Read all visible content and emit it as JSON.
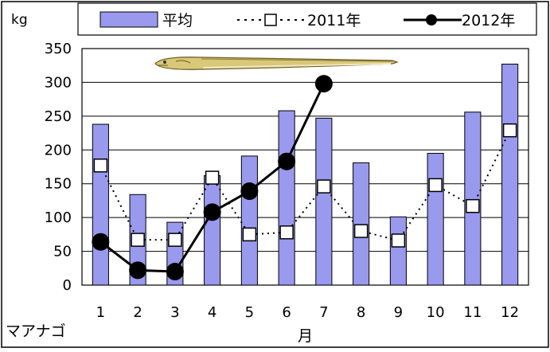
{
  "chart_data": {
    "type": "bar",
    "unit_label": "kg",
    "xlabel": "月",
    "species_label": "マアナゴ",
    "categories": [
      "1",
      "2",
      "3",
      "4",
      "5",
      "6",
      "7",
      "8",
      "9",
      "10",
      "11",
      "12"
    ],
    "ylim": [
      0,
      350
    ],
    "yticks": [
      "0",
      "50",
      "100",
      "150",
      "200",
      "250",
      "300",
      "350"
    ],
    "grid": true,
    "legend_position": "top",
    "series": [
      {
        "name": "平均",
        "kind": "bar",
        "color": "#9999ee",
        "values": [
          238,
          134,
          93,
          162,
          191,
          258,
          247,
          181,
          101,
          195,
          256,
          327
        ]
      },
      {
        "name": "2011年",
        "kind": "line-dotted-square",
        "values": [
          177,
          67,
          67,
          159,
          75,
          78,
          146,
          80,
          66,
          148,
          117,
          229
        ]
      },
      {
        "name": "2012年",
        "kind": "line-solid-circle",
        "values": [
          64,
          22,
          20,
          108,
          139,
          183,
          298,
          null,
          null,
          null,
          null,
          null
        ]
      }
    ]
  },
  "illustration": {
    "name": "conger-eel-illustration"
  }
}
